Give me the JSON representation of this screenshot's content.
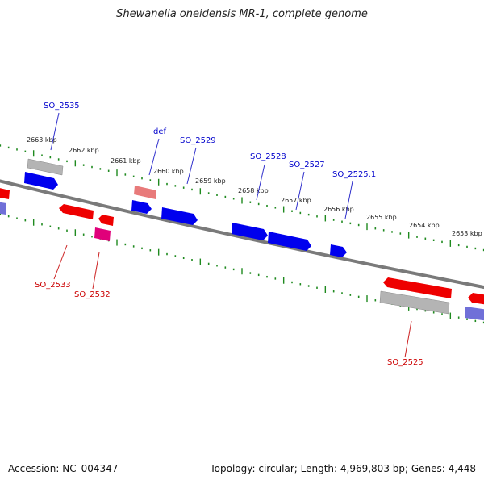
{
  "title": "Shewanella oneidensis MR-1, complete genome",
  "footer": {
    "accession_label": "Accession: NC_004347",
    "summary_label": "Topology: circular; Length: 4,969,803 bp; Genes: 4,448"
  },
  "colors": {
    "backbone": "#7a7a7a",
    "tick": "#1f8a1f",
    "forward_gene": "#0000ee",
    "reverse_gene": "#ee0000",
    "pseudo_gene": "#b4b4b4",
    "label_forward": "#0000cc",
    "label_reverse": "#cc0000",
    "rrna_pink": "#e0007a",
    "salmon": "#e87a7a"
  },
  "scale_labels": [
    "2663 kbp",
    "2662 kbp",
    "2661 kbp",
    "2660 kbp",
    "2659 kbp",
    "2658 kbp",
    "2657 kbp",
    "2656 kbp",
    "2655 kbp",
    "2654 kbp",
    "2653 kbp"
  ],
  "forward_gene_labels": [
    "SO_2535",
    "def",
    "SO_2529",
    "SO_2528",
    "SO_2527",
    "SO_2525.1"
  ],
  "reverse_gene_labels": [
    "SO_2533",
    "SO_2532",
    "SO_2525"
  ]
}
